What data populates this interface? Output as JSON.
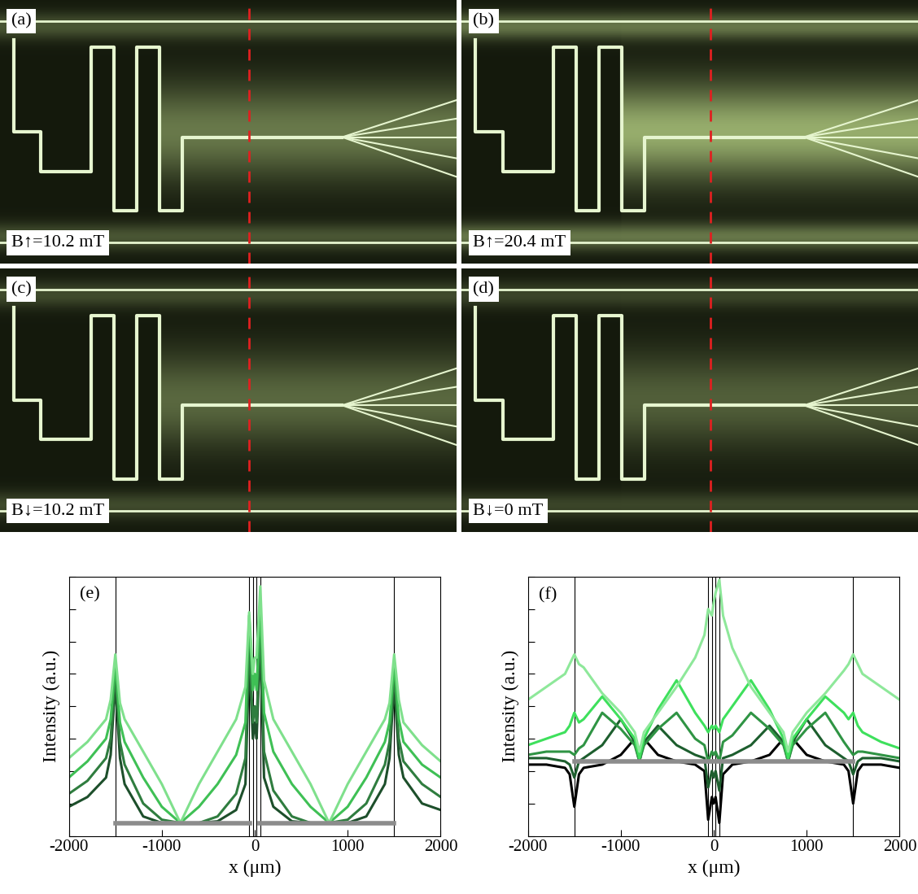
{
  "chart_data": [
    {
      "type": "image",
      "label": "(a)",
      "annotation": "B↑=10.2 mT"
    },
    {
      "type": "image",
      "label": "(b)",
      "annotation": "B↑=20.4 mT"
    },
    {
      "type": "image",
      "label": "(c)",
      "annotation": "B↓=10.2 mT"
    },
    {
      "type": "image",
      "label": "(d)",
      "annotation": "B↓=0 mT"
    },
    {
      "type": "line",
      "label": "(e)",
      "x_label": "x (μm)",
      "y_label": "Intensity (a.u.)",
      "tick_labels": "x",
      "xlim": [
        -2000,
        2000
      ],
      "xticks": [
        -2000,
        -1000,
        0,
        1000,
        2000
      ],
      "ylim": [
        0,
        8
      ],
      "yticks": [
        0,
        1,
        2,
        3,
        4,
        5,
        6,
        7,
        8
      ],
      "vlines": [
        -1500,
        -60,
        -20,
        20,
        60,
        1500
      ],
      "x": [
        -2000,
        -1800,
        -1600,
        -1550,
        -1500,
        -1450,
        -1400,
        -1200,
        -1000,
        -800,
        -600,
        -400,
        -200,
        -100,
        -60,
        -20,
        0,
        20,
        60,
        100,
        200,
        400,
        600,
        800,
        1000,
        1200,
        1400,
        1450,
        1500,
        1550,
        1600,
        1800,
        2000
      ],
      "series": [
        {
          "color": "#1d4f2b",
          "values": [
            0.9,
            1.2,
            1.8,
            2.5,
            4.7,
            2.4,
            1.6,
            0.6,
            0.4,
            0.4,
            0.4,
            0.45,
            0.8,
            1.6,
            5.5,
            3.0,
            3.5,
            3.0,
            6.0,
            1.8,
            0.9,
            0.45,
            0.4,
            0.4,
            0.4,
            0.6,
            1.6,
            2.4,
            4.7,
            2.5,
            1.8,
            1.0,
            0.8
          ]
        },
        {
          "color": "#2f7d3f",
          "values": [
            1.3,
            1.7,
            2.4,
            3.0,
            5.0,
            2.9,
            2.2,
            1.0,
            0.5,
            0.4,
            0.4,
            0.6,
            1.3,
            2.4,
            6.0,
            3.5,
            4.0,
            3.5,
            6.5,
            2.6,
            1.4,
            0.6,
            0.4,
            0.4,
            0.5,
            1.0,
            2.2,
            2.9,
            5.0,
            3.0,
            2.3,
            1.6,
            1.2
          ]
        },
        {
          "color": "#3fc055",
          "values": [
            1.8,
            2.3,
            3.0,
            3.6,
            5.3,
            3.5,
            2.9,
            1.8,
            0.9,
            0.4,
            0.9,
            1.6,
            2.5,
            3.5,
            6.8,
            4.5,
            5.0,
            4.5,
            7.2,
            3.8,
            2.6,
            1.6,
            0.9,
            0.4,
            0.9,
            1.8,
            2.9,
            3.5,
            5.3,
            3.6,
            2.9,
            2.2,
            1.8
          ]
        },
        {
          "color": "#7fe08c",
          "values": [
            2.4,
            2.9,
            3.6,
            4.2,
            5.6,
            4.1,
            3.6,
            2.6,
            1.6,
            0.4,
            1.6,
            2.6,
            3.6,
            4.6,
            6.9,
            5.0,
            5.5,
            5.5,
            7.7,
            4.8,
            3.6,
            2.6,
            1.6,
            0.4,
            1.6,
            2.6,
            3.6,
            4.1,
            5.6,
            4.2,
            3.5,
            2.8,
            2.3
          ]
        },
        {
          "color": "#8c8c8c",
          "x": [
            -1500,
            -50,
            0,
            50,
            1500
          ],
          "values": [
            0.4,
            0.4,
            null,
            0.4,
            0.4
          ]
        }
      ]
    },
    {
      "type": "line",
      "label": "(f)",
      "x_label": "x (μm)",
      "y_label": "Intensity (a.u.)",
      "tick_labels": "x",
      "xlim": [
        -2000,
        2000
      ],
      "xticks": [
        -2000,
        -1000,
        0,
        1000,
        2000
      ],
      "ylim": [
        0,
        8
      ],
      "yticks": [
        0,
        1,
        2,
        3,
        4,
        5,
        6,
        7,
        8
      ],
      "vlines": [
        -1500,
        -60,
        -20,
        20,
        60,
        1500
      ],
      "x": [
        -2000,
        -1800,
        -1600,
        -1550,
        -1500,
        -1450,
        -1400,
        -1200,
        -1000,
        -850,
        -800,
        -750,
        -600,
        -400,
        -200,
        -100,
        -60,
        -20,
        0,
        20,
        60,
        100,
        200,
        400,
        600,
        750,
        800,
        850,
        1000,
        1200,
        1400,
        1450,
        1500,
        1550,
        1600,
        1800,
        2000
      ],
      "series": [
        {
          "color": "#000000",
          "values": [
            2.2,
            2.2,
            2.1,
            1.9,
            0.9,
            1.9,
            2.1,
            2.2,
            2.5,
            3.0,
            2.3,
            3.0,
            2.5,
            2.3,
            2.2,
            2.0,
            0.5,
            1.2,
            1.0,
            1.2,
            0.4,
            1.9,
            2.2,
            2.3,
            2.5,
            3.0,
            2.3,
            3.0,
            2.5,
            2.3,
            2.2,
            2.0,
            1.0,
            2.0,
            2.2,
            2.2,
            2.1
          ]
        },
        {
          "color": "#1d5e2e",
          "values": [
            2.4,
            2.4,
            2.3,
            2.2,
            1.8,
            2.3,
            2.4,
            2.8,
            3.6,
            2.9,
            2.3,
            2.9,
            3.4,
            2.8,
            2.5,
            2.4,
            1.5,
            2.0,
            1.8,
            2.0,
            1.4,
            2.4,
            2.5,
            2.8,
            3.4,
            2.9,
            2.3,
            2.9,
            3.6,
            2.8,
            2.4,
            2.3,
            1.9,
            2.3,
            2.4,
            2.4,
            2.3
          ]
        },
        {
          "color": "#2f9444",
          "values": [
            2.5,
            2.6,
            2.6,
            2.6,
            2.5,
            2.7,
            2.8,
            3.8,
            3.3,
            2.8,
            2.3,
            2.8,
            3.3,
            3.8,
            3.0,
            2.8,
            2.3,
            2.6,
            2.5,
            2.6,
            2.3,
            2.9,
            3.1,
            3.8,
            3.3,
            2.8,
            2.3,
            2.8,
            3.3,
            3.8,
            2.9,
            2.7,
            2.5,
            2.6,
            2.6,
            2.5,
            2.4
          ]
        },
        {
          "color": "#3ee05c",
          "values": [
            2.8,
            3.0,
            3.2,
            3.4,
            3.8,
            3.5,
            3.6,
            4.3,
            3.6,
            3.0,
            2.4,
            3.0,
            3.9,
            4.8,
            3.8,
            3.4,
            3.2,
            3.4,
            3.3,
            3.4,
            3.2,
            3.6,
            4.0,
            4.8,
            3.9,
            3.0,
            2.4,
            3.0,
            3.6,
            4.3,
            3.8,
            3.6,
            3.8,
            3.4,
            3.2,
            2.9,
            2.7
          ]
        },
        {
          "color": "#8ee89a",
          "values": [
            4.2,
            4.6,
            5.0,
            5.3,
            5.6,
            5.3,
            5.2,
            4.4,
            3.8,
            3.2,
            2.6,
            3.2,
            3.8,
            4.6,
            5.5,
            6.2,
            7.0,
            6.8,
            7.2,
            7.5,
            7.9,
            6.8,
            5.8,
            4.6,
            3.8,
            3.2,
            2.6,
            3.2,
            3.8,
            4.4,
            5.1,
            5.3,
            5.6,
            5.3,
            5.0,
            4.6,
            4.2
          ]
        },
        {
          "color": "#8c8c8c",
          "x": [
            -1500,
            1500
          ],
          "values": [
            2.3,
            2.3
          ]
        }
      ]
    }
  ]
}
